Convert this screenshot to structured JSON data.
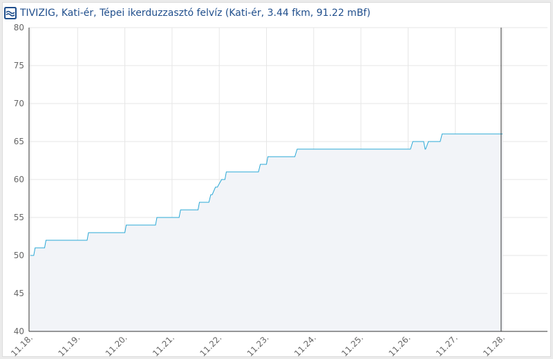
{
  "header": {
    "title": "TIVIZIG, Kati-ér, Tépei ikerduzzasztó felvíz (Kati-ér, 3.44 fkm, 91.22 mBf)",
    "logo_icon": "tivizig-logo-icon"
  },
  "colors": {
    "line": "#2aa8d6",
    "area": "#f2f4f8",
    "grid": "#e6e6e6",
    "now_marker": "#333333",
    "title": "#1f4e8c"
  },
  "chart_data": {
    "type": "line",
    "title": "TIVIZIG, Kati-ér, Tépei ikerduzzasztó felvíz (Kati-ér, 3.44 fkm, 91.22 mBf)",
    "xlabel": "",
    "ylabel": "",
    "ylim": [
      40,
      80
    ],
    "yticks": [
      40,
      45,
      50,
      55,
      60,
      65,
      70,
      75,
      80
    ],
    "xlim": [
      0,
      10.5
    ],
    "xticks": [
      {
        "x": 0,
        "label": "11.18."
      },
      {
        "x": 1,
        "label": "11.19."
      },
      {
        "x": 2,
        "label": "11.20."
      },
      {
        "x": 3,
        "label": "11.21."
      },
      {
        "x": 4,
        "label": "11.22."
      },
      {
        "x": 5,
        "label": "11.23."
      },
      {
        "x": 6,
        "label": "11.24."
      },
      {
        "x": 7,
        "label": "11.25."
      },
      {
        "x": 8,
        "label": "11.26."
      },
      {
        "x": 9,
        "label": "11.27."
      },
      {
        "x": 10,
        "label": "11.28."
      }
    ],
    "grid": true,
    "now_marker_x": 9.97,
    "series": [
      {
        "x": [
          0.0,
          0.07,
          0.1,
          0.3,
          0.33,
          1.2,
          1.23,
          2.0,
          2.03,
          2.65,
          2.68,
          3.15,
          3.18,
          3.55,
          3.58,
          3.78,
          3.82,
          3.85,
          3.92,
          3.96,
          4.05,
          4.12,
          4.15,
          4.3,
          4.33,
          4.83,
          4.87,
          5.0,
          5.03,
          5.6,
          5.65,
          8.05,
          8.1,
          8.33,
          8.36,
          8.37,
          8.43,
          8.68,
          8.72,
          10.0
        ],
        "y": [
          50,
          50,
          51,
          51,
          52,
          52,
          53,
          53,
          54,
          54,
          55,
          55,
          56,
          56,
          57,
          57,
          58,
          58,
          59,
          59,
          60,
          60,
          61,
          61,
          61,
          61,
          62,
          62,
          63,
          63,
          64,
          64,
          65,
          65,
          64,
          64,
          65,
          65,
          66,
          66
        ]
      }
    ]
  }
}
